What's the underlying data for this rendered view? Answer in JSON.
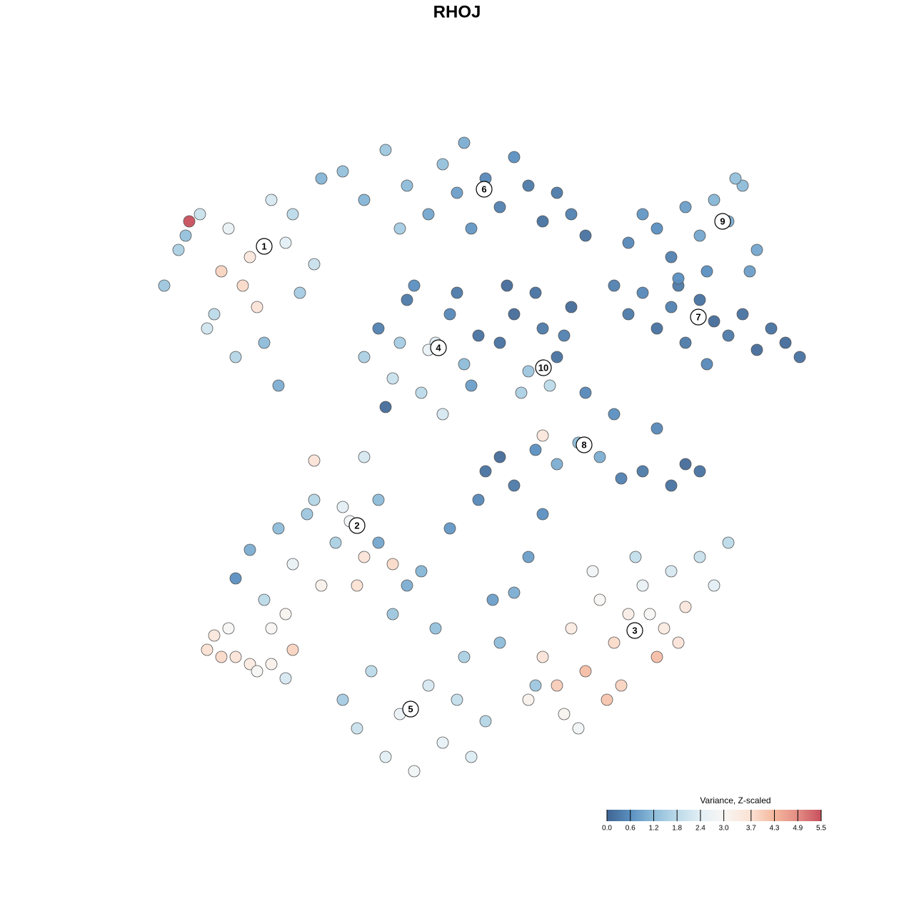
{
  "chart_data": {
    "type": "scatter",
    "title": "RHOJ",
    "xlim": [
      0,
      93
    ],
    "ylim": [
      0,
      92
    ],
    "series": [
      {
        "x": [
          3,
          5,
          8,
          10,
          12,
          14,
          15,
          17,
          18,
          20,
          22,
          24,
          13,
          16,
          11,
          19,
          9,
          21,
          6,
          25,
          6.5
        ],
        "y": [
          70,
          75,
          80,
          66,
          78,
          70,
          74,
          62,
          82,
          76,
          69,
          73,
          60,
          67,
          72,
          56,
          64,
          80,
          77,
          85,
          79
        ],
        "values": [
          1.4,
          1.6,
          2.0,
          1.8,
          2.6,
          3.8,
          3.5,
          1.2,
          2.2,
          2.4,
          1.5,
          2.0,
          1.7,
          3.6,
          3.9,
          1.0,
          2.1,
          1.8,
          1.3,
          1.1,
          5.5
        ]
      },
      {
        "x": [
          28,
          31,
          34,
          37,
          40,
          42,
          44,
          46,
          48,
          50,
          52,
          54,
          56,
          58,
          60,
          62,
          36,
          45
        ],
        "y": [
          86,
          82,
          89,
          84,
          80,
          87,
          83,
          78,
          85,
          81,
          88,
          84,
          79,
          83,
          80,
          77,
          78,
          90
        ],
        "values": [
          1.3,
          1.1,
          1.4,
          1.2,
          0.9,
          1.3,
          0.8,
          0.7,
          0.5,
          0.4,
          0.6,
          0.3,
          0.2,
          0.3,
          0.4,
          0.2,
          1.5,
          1.0
        ]
      },
      {
        "x": [
          68,
          70,
          72,
          74,
          76,
          78,
          80,
          82,
          84,
          86,
          79,
          83,
          75,
          85
        ],
        "y": [
          76,
          80,
          78,
          74,
          81,
          77,
          82,
          79,
          84,
          75,
          72,
          85,
          70,
          72
        ],
        "values": [
          0.5,
          0.7,
          0.6,
          0.4,
          0.8,
          0.9,
          1.1,
          1.0,
          1.2,
          0.9,
          0.6,
          1.3,
          0.3,
          0.8
        ]
      },
      {
        "x": [
          66,
          68,
          70,
          72,
          74,
          76,
          78,
          80,
          82,
          84,
          86,
          88,
          90,
          92,
          79,
          75
        ],
        "y": [
          70,
          66,
          69,
          64,
          67,
          62,
          68,
          65,
          63,
          66,
          61,
          64,
          62,
          60,
          59,
          71
        ],
        "values": [
          0.4,
          0.3,
          0.5,
          0.2,
          0.4,
          0.3,
          0.2,
          0.1,
          0.3,
          0.2,
          0.1,
          0.2,
          0.1,
          0.2,
          0.5,
          0.6
        ]
      },
      {
        "x": [
          31,
          33,
          35,
          37,
          39,
          41,
          43,
          45,
          47,
          34,
          38,
          42,
          46,
          36,
          44,
          40
        ],
        "y": [
          60,
          64,
          57,
          68,
          55,
          62,
          66,
          59,
          63,
          53,
          70,
          52,
          56,
          62,
          69,
          61
        ],
        "values": [
          1.6,
          0.4,
          2.0,
          0.3,
          1.8,
          2.4,
          0.5,
          1.2,
          0.2,
          0.1,
          0.6,
          2.2,
          0.8,
          1.5,
          0.3,
          2.6
        ]
      },
      {
        "x": [
          50,
          52,
          54,
          56,
          58,
          60,
          53,
          57,
          55,
          59,
          51
        ],
        "y": [
          62,
          66,
          58,
          64,
          60,
          67,
          55,
          56,
          69,
          63,
          70
        ],
        "values": [
          0.2,
          0.1,
          1.4,
          0.3,
          0.2,
          0.1,
          1.6,
          1.8,
          0.2,
          0.4,
          0.1
        ]
      },
      {
        "x": [
          48,
          50,
          52,
          55,
          58,
          61,
          64,
          67,
          70,
          72,
          74,
          76,
          78,
          66,
          62,
          56
        ],
        "y": [
          44,
          46,
          42,
          47,
          45,
          48,
          46,
          43,
          44,
          50,
          42,
          45,
          44,
          52,
          55,
          49
        ],
        "values": [
          0.2,
          0.1,
          0.3,
          0.6,
          1.0,
          1.2,
          1.0,
          0.4,
          0.3,
          0.5,
          0.2,
          0.1,
          0.2,
          0.6,
          0.5,
          3.5
        ]
      },
      {
        "x": [
          13,
          15,
          17,
          19,
          21,
          23,
          25,
          27,
          29,
          31,
          33,
          35,
          20,
          24,
          18,
          30,
          28,
          24,
          31
        ],
        "y": [
          29,
          33,
          26,
          36,
          31,
          38,
          28,
          34,
          37,
          32,
          40,
          31,
          24,
          40,
          22,
          28,
          39,
          45.5,
          46
        ],
        "values": [
          0.6,
          1.0,
          1.8,
          1.2,
          2.6,
          1.4,
          3.2,
          1.6,
          2.8,
          3.6,
          1.2,
          3.8,
          3.1,
          1.7,
          3.0,
          3.7,
          2.4,
          3.6,
          2.2
        ]
      },
      {
        "x": [
          9,
          10,
          11,
          13,
          15,
          16,
          18,
          20,
          21,
          12
        ],
        "y": [
          19,
          21,
          18,
          18,
          17,
          16,
          17,
          15,
          19,
          22
        ],
        "values": [
          3.7,
          3.5,
          3.8,
          3.6,
          3.4,
          2.9,
          3.2,
          2.2,
          3.9,
          3.0
        ]
      },
      {
        "x": [
          28,
          30,
          32,
          34,
          36,
          38,
          40,
          42,
          44,
          46,
          48,
          50,
          52,
          54,
          56,
          35,
          39,
          43,
          47,
          41,
          45,
          37,
          33,
          49,
          55
        ],
        "y": [
          12,
          8,
          16,
          4,
          10,
          2,
          14,
          6,
          12,
          4,
          9,
          20,
          27,
          32,
          38,
          24,
          30,
          36,
          40,
          22,
          18,
          28,
          34,
          26,
          14
        ],
        "values": [
          1.5,
          2.0,
          1.8,
          2.4,
          2.6,
          2.8,
          2.2,
          2.5,
          1.9,
          2.3,
          1.7,
          1.2,
          1.0,
          0.8,
          0.6,
          1.4,
          1.1,
          0.7,
          0.5,
          1.3,
          1.6,
          1.0,
          0.9,
          0.8,
          1.4
        ]
      },
      {
        "x": [
          54,
          56,
          58,
          60,
          62,
          64,
          66,
          68,
          70,
          72,
          74,
          76,
          78,
          80,
          82,
          59,
          63,
          67,
          71,
          75,
          61,
          65,
          69,
          73
        ],
        "y": [
          12,
          18,
          14,
          22,
          16,
          26,
          20,
          24,
          28,
          18,
          30,
          25,
          32,
          28,
          34,
          10,
          30,
          14,
          24,
          20,
          8,
          12,
          32,
          22
        ],
        "values": [
          3.2,
          3.6,
          4.0,
          3.4,
          4.2,
          3.0,
          3.8,
          3.3,
          2.6,
          4.2,
          2.2,
          3.5,
          2.0,
          2.4,
          1.8,
          3.1,
          2.8,
          3.9,
          3.0,
          3.6,
          2.8,
          4.1,
          1.9,
          3.4
        ]
      }
    ],
    "annotations": [
      {
        "text": "1",
        "x": 17,
        "y": 75.5
      },
      {
        "text": "2",
        "x": 30,
        "y": 36.4
      },
      {
        "text": "3",
        "x": 68.9,
        "y": 21.7
      },
      {
        "text": "4",
        "x": 41.4,
        "y": 61.3
      },
      {
        "text": "5",
        "x": 37.5,
        "y": 10.7
      },
      {
        "text": "6",
        "x": 47.8,
        "y": 83.5
      },
      {
        "text": "7",
        "x": 77.8,
        "y": 65.6
      },
      {
        "text": "8",
        "x": 61.8,
        "y": 47.7
      },
      {
        "text": "9",
        "x": 81.2,
        "y": 79
      },
      {
        "text": "10",
        "x": 56.1,
        "y": 58.5
      }
    ],
    "colorbar": {
      "title": "Variance, Z-scaled",
      "clim": [
        0,
        5.5
      ],
      "ticks": [
        {
          "value": 0,
          "label": "0.0"
        },
        0.6,
        1.2,
        1.8,
        2.4,
        {
          "value": 3,
          "label": "3.0"
        },
        3.7,
        4.3,
        4.9,
        5.5
      ],
      "colormap": [
        {
          "value": 0,
          "color": "#3f6491"
        },
        {
          "value": 0.6,
          "color": "#5a8fc0"
        },
        {
          "value": 1.2,
          "color": "#8dbcd9"
        },
        {
          "value": 1.8,
          "color": "#bcdae9"
        },
        {
          "value": 2.4,
          "color": "#e3eff5"
        },
        {
          "value": 3,
          "color": "#f8f6f4"
        },
        {
          "value": 3.7,
          "color": "#fbe1d3"
        },
        {
          "value": 4.3,
          "color": "#f4b79d"
        },
        {
          "value": 4.9,
          "color": "#e38c84"
        },
        {
          "value": 5.5,
          "color": "#c8505d"
        }
      ]
    }
  }
}
